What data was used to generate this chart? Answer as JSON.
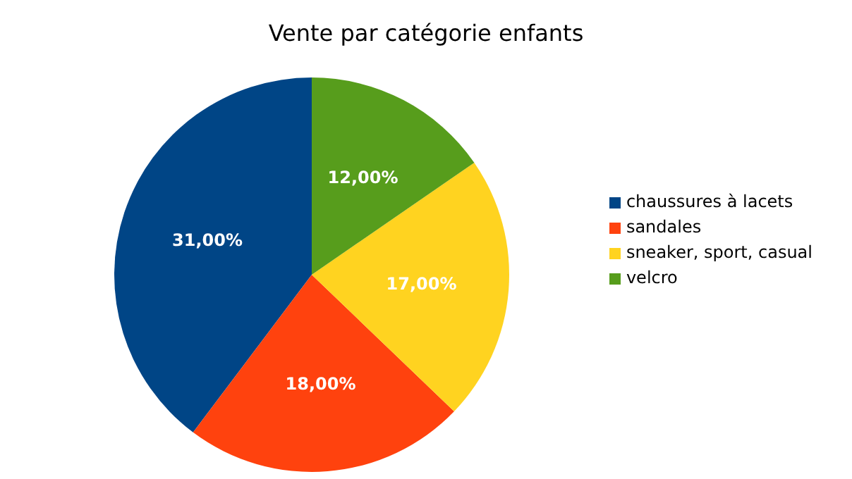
{
  "chart_data": {
    "type": "pie",
    "title": "Vente par catégorie enfants",
    "categories": [
      "chaussures à lacets",
      "sandales",
      "sneaker, sport, casual",
      "velcro"
    ],
    "values": [
      31,
      18,
      17,
      12
    ],
    "colors": [
      "#004586",
      "#ff420e",
      "#ffd320",
      "#579d1c"
    ],
    "value_labels": [
      "31,00%",
      "18,00%",
      "17,00%",
      "12,00%"
    ],
    "legend": "right"
  }
}
